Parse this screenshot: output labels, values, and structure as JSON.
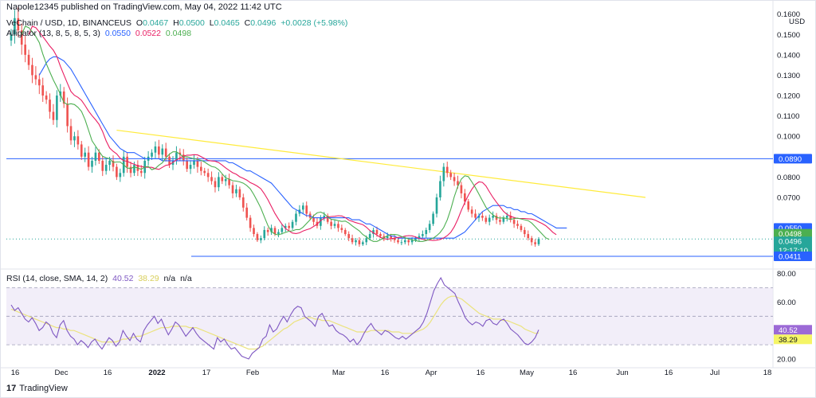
{
  "publish_line": "Napole12345 published on TradingView.com, May 04, 2022 11:42 UTC",
  "symbol": {
    "name": "VeChain / USD, 1D, BINANCEUS",
    "open_label": "O",
    "open": "0.0467",
    "high_label": "H",
    "high": "0.0500",
    "low_label": "L",
    "low": "0.0465",
    "close_label": "C",
    "close": "0.0496",
    "change": "+0.0028 (+5.98%)"
  },
  "alligator": {
    "label": "Alligator (13, 8, 5, 8, 5, 3)",
    "jaw": "0.0550",
    "teeth": "0.0522",
    "lips": "0.0498"
  },
  "rsi_legend": {
    "label": "RSI (14, close, SMA, 14, 2)",
    "rsi": "40.52",
    "sma": "38.29",
    "na1": "n/a",
    "na2": "n/a"
  },
  "footer": {
    "brand": "TradingView"
  },
  "colors": {
    "up": "#26a69a",
    "down": "#ef5350",
    "jaw": "#2962ff",
    "teeth": "#e91e63",
    "lips": "#4caf50",
    "trendline": "#ffeb3b",
    "hline": "#2962ff",
    "rsi": "#7e57c2",
    "rsi_sma": "#ebe37e",
    "rsi_band": "#ede7f6"
  },
  "chart_data": [
    {
      "type": "candlestick",
      "y_axis_label": "USD",
      "y_ticks": [
        "0.1600",
        "0.1500",
        "0.1400",
        "0.1300",
        "0.1200",
        "0.1100",
        "0.1000",
        "0.0900",
        "0.0800",
        "0.0700"
      ],
      "ylim": [
        0.036,
        0.163
      ],
      "x_ticks": [
        "16",
        "Dec",
        "16",
        "2022",
        "17",
        "Feb",
        "Mar",
        "16",
        "Apr",
        "16",
        "May",
        "16",
        "Jun",
        "16",
        "Jul",
        "18"
      ],
      "price_tags": [
        {
          "text": "0.0890",
          "color": "#2962ff"
        },
        {
          "text": "0.0550",
          "color": "#2962ff"
        },
        {
          "text": "0.0522",
          "color": "#e91e63"
        },
        {
          "text": "0.0498",
          "color": "#4caf50"
        },
        {
          "text": "0.0496",
          "color": "#26a69a",
          "sub": "12:17:10"
        },
        {
          "text": "0.0411",
          "color": "#2962ff"
        }
      ],
      "horizontal_lines": [
        0.089,
        0.0411
      ],
      "trendline": [
        [
          0.103,
          1
        ],
        [
          0.07,
          2
        ]
      ],
      "close": [
        0.15,
        0.158,
        0.152,
        0.145,
        0.14,
        0.135,
        0.13,
        0.128,
        0.125,
        0.12,
        0.118,
        0.112,
        0.108,
        0.12,
        0.122,
        0.116,
        0.105,
        0.098,
        0.1,
        0.096,
        0.09,
        0.092,
        0.085,
        0.088,
        0.092,
        0.088,
        0.083,
        0.086,
        0.088,
        0.085,
        0.08,
        0.082,
        0.09,
        0.085,
        0.082,
        0.086,
        0.083,
        0.082,
        0.088,
        0.09,
        0.092,
        0.095,
        0.091,
        0.094,
        0.09,
        0.086,
        0.088,
        0.092,
        0.091,
        0.088,
        0.084,
        0.086,
        0.088,
        0.085,
        0.083,
        0.082,
        0.08,
        0.078,
        0.075,
        0.08,
        0.078,
        0.079,
        0.076,
        0.072,
        0.074,
        0.07,
        0.065,
        0.06,
        0.055,
        0.052,
        0.049,
        0.05,
        0.054,
        0.053,
        0.055,
        0.052,
        0.053,
        0.055,
        0.056,
        0.055,
        0.058,
        0.062,
        0.064,
        0.066,
        0.062,
        0.06,
        0.058,
        0.056,
        0.06,
        0.061,
        0.058,
        0.056,
        0.057,
        0.055,
        0.054,
        0.052,
        0.05,
        0.048,
        0.049,
        0.047,
        0.048,
        0.05,
        0.052,
        0.054,
        0.052,
        0.051,
        0.05,
        0.051,
        0.05,
        0.049,
        0.048,
        0.048,
        0.049,
        0.048,
        0.049,
        0.05,
        0.051,
        0.052,
        0.054,
        0.057,
        0.062,
        0.07,
        0.078,
        0.085,
        0.082,
        0.08,
        0.078,
        0.076,
        0.072,
        0.068,
        0.064,
        0.062,
        0.06,
        0.061,
        0.06,
        0.058,
        0.06,
        0.061,
        0.059,
        0.058,
        0.06,
        0.061,
        0.059,
        0.057,
        0.056,
        0.054,
        0.052,
        0.05,
        0.048,
        0.047,
        0.0496
      ],
      "alligator_jaw": [
        0.13,
        0.133,
        0.136,
        0.138,
        0.139,
        0.139,
        0.138,
        0.137,
        0.135,
        0.133,
        0.13,
        0.127,
        0.124,
        0.121,
        0.118,
        0.115,
        0.112,
        0.109,
        0.106,
        0.103,
        0.1,
        0.098,
        0.096,
        0.094,
        0.093,
        0.092,
        0.092,
        0.092,
        0.091,
        0.09,
        0.089,
        0.089,
        0.089,
        0.089,
        0.089,
        0.088,
        0.088,
        0.088,
        0.088,
        0.088,
        0.088,
        0.088,
        0.088,
        0.088,
        0.088,
        0.088,
        0.088,
        0.088,
        0.088,
        0.088,
        0.088,
        0.088,
        0.088,
        0.088,
        0.087,
        0.087,
        0.086,
        0.085,
        0.084,
        0.083,
        0.083,
        0.082,
        0.081,
        0.08,
        0.079,
        0.078,
        0.077,
        0.075,
        0.073,
        0.071,
        0.069,
        0.067,
        0.065,
        0.064,
        0.063,
        0.062,
        0.061,
        0.061,
        0.06,
        0.06,
        0.06,
        0.06,
        0.06,
        0.06,
        0.06,
        0.06,
        0.06,
        0.06,
        0.06,
        0.059,
        0.059,
        0.059,
        0.058,
        0.057,
        0.057,
        0.056,
        0.055,
        0.054,
        0.053,
        0.052,
        0.051,
        0.051,
        0.05,
        0.05,
        0.05,
        0.05,
        0.05,
        0.05,
        0.05,
        0.05,
        0.05,
        0.05,
        0.05,
        0.05,
        0.05,
        0.05,
        0.05,
        0.05,
        0.05,
        0.051,
        0.052,
        0.053,
        0.055,
        0.057,
        0.059,
        0.061,
        0.063,
        0.064,
        0.065,
        0.066,
        0.066,
        0.066,
        0.066,
        0.065,
        0.065,
        0.064,
        0.064,
        0.063,
        0.063,
        0.062,
        0.062,
        0.061,
        0.06,
        0.059,
        0.058,
        0.057,
        0.056,
        0.055,
        0.055,
        0.055,
        0.055
      ]
    },
    {
      "type": "line",
      "name": "RSI",
      "y_ticks": [
        "80.00",
        "60.00",
        "40.00",
        "20.00"
      ],
      "ylim": [
        15,
        82
      ],
      "band": [
        30,
        70
      ],
      "midline": 50,
      "rsi": [
        58,
        54,
        56,
        52,
        48,
        46,
        49,
        45,
        40,
        42,
        46,
        44,
        38,
        35,
        44,
        47,
        40,
        36,
        34,
        30,
        33,
        31,
        28,
        32,
        34,
        30,
        27,
        31,
        35,
        33,
        29,
        32,
        40,
        36,
        33,
        38,
        34,
        32,
        40,
        44,
        47,
        50,
        45,
        48,
        42,
        37,
        41,
        46,
        44,
        40,
        36,
        39,
        42,
        38,
        35,
        33,
        31,
        29,
        27,
        35,
        32,
        34,
        30,
        27,
        28,
        25,
        22,
        21,
        20,
        24,
        26,
        28,
        34,
        36,
        44,
        39,
        41,
        46,
        50,
        46,
        51,
        55,
        57,
        56,
        50,
        48,
        46,
        43,
        50,
        52,
        47,
        43,
        44,
        40,
        38,
        37,
        35,
        32,
        34,
        30,
        33,
        38,
        42,
        45,
        41,
        39,
        37,
        40,
        39,
        37,
        35,
        34,
        36,
        34,
        36,
        38,
        40,
        42,
        46,
        52,
        60,
        68,
        73,
        77,
        72,
        70,
        68,
        66,
        60,
        55,
        49,
        46,
        44,
        46,
        45,
        43,
        47,
        48,
        45,
        44,
        47,
        48,
        45,
        41,
        39,
        37,
        34,
        31,
        30,
        32,
        35,
        40.52
      ],
      "sma": [
        55,
        54,
        53,
        52,
        51,
        50,
        49,
        48,
        47,
        46,
        45,
        44,
        43,
        42,
        42,
        41,
        41,
        40,
        40,
        39,
        38,
        37,
        36,
        35,
        34,
        33,
        32,
        32,
        32,
        32,
        32,
        33,
        34,
        34,
        35,
        35,
        36,
        36,
        37,
        38,
        39,
        40,
        41,
        42,
        42,
        42,
        43,
        43,
        43,
        43,
        43,
        42,
        42,
        42,
        41,
        40,
        39,
        38,
        37,
        36,
        35,
        34,
        33,
        32,
        31,
        30,
        29,
        28,
        27,
        27,
        27,
        28,
        29,
        31,
        33,
        35,
        37,
        39,
        41,
        42,
        44,
        46,
        47,
        48,
        49,
        49,
        49,
        48,
        48,
        47,
        47,
        47,
        46,
        45,
        44,
        43,
        42,
        41,
        40,
        39,
        39,
        39,
        39,
        40,
        40,
        40,
        40,
        40,
        40,
        39,
        39,
        39,
        38,
        38,
        38,
        38,
        39,
        40,
        41,
        43,
        46,
        50,
        54,
        58,
        61,
        63,
        64,
        64,
        63,
        62,
        60,
        58,
        56,
        54,
        52,
        51,
        50,
        49,
        48,
        48,
        48,
        47,
        47,
        46,
        45,
        44,
        43,
        41,
        40,
        39,
        38,
        38.29
      ]
    }
  ]
}
